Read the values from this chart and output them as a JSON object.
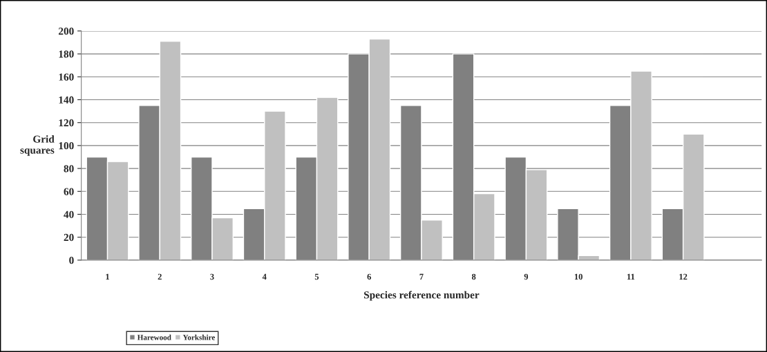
{
  "chart_data": {
    "type": "bar",
    "xlabel": "Species reference number",
    "ylabel": "Grid\nsquares",
    "categories": [
      "1",
      "2",
      "3",
      "4",
      "5",
      "6",
      "7",
      "8",
      "9",
      "10",
      "11",
      "12",
      null
    ],
    "series": [
      {
        "name": "Harewood",
        "color": "#808080",
        "values": [
          90,
          135,
          90,
          45,
          90,
          180,
          135,
          180,
          90,
          45,
          135,
          45,
          null
        ]
      },
      {
        "name": "Yorkshire",
        "color": "#c0c0c0",
        "values": [
          86,
          191,
          37,
          130,
          142,
          193,
          35,
          58,
          79,
          4,
          165,
          110,
          null
        ]
      }
    ],
    "ylim": [
      0,
      200
    ],
    "yticks": [
      0,
      20,
      40,
      60,
      80,
      100,
      120,
      140,
      160,
      180,
      200
    ],
    "grid": "y",
    "legend": "bottom left"
  }
}
